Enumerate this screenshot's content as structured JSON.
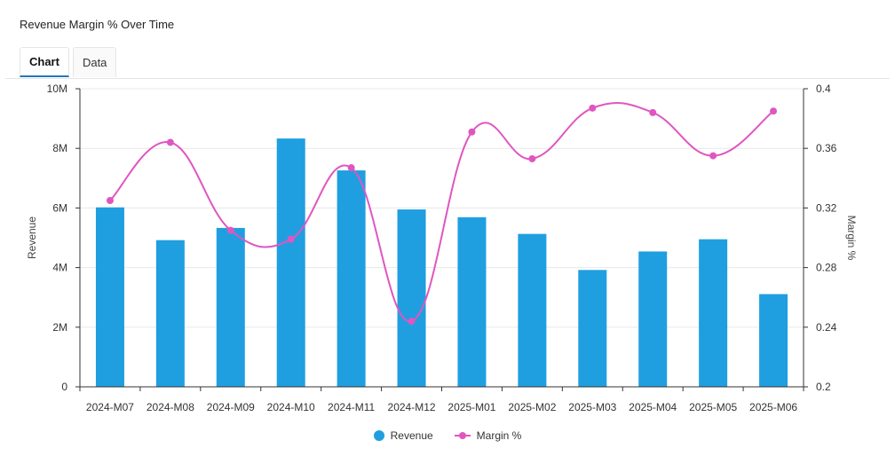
{
  "title": "Revenue Margin % Over Time",
  "tabs": [
    {
      "label": "Chart",
      "active": true
    },
    {
      "label": "Data",
      "active": false
    }
  ],
  "colors": {
    "bar": "#1f9fe0",
    "line": "#e056c0",
    "grid": "#e8e8e8",
    "axis": "#333333"
  },
  "chart_data": {
    "type": "bar",
    "categories": [
      "2024-M07",
      "2024-M08",
      "2024-M09",
      "2024-M10",
      "2024-M11",
      "2024-M12",
      "2025-M01",
      "2025-M02",
      "2025-M03",
      "2025-M04",
      "2025-M05",
      "2025-M06"
    ],
    "series": [
      {
        "name": "Revenue",
        "type": "bar",
        "axis": "left",
        "values": [
          6020000,
          4920000,
          5330000,
          8330000,
          7260000,
          5950000,
          5690000,
          5130000,
          3920000,
          4540000,
          4950000,
          3110000
        ]
      },
      {
        "name": "Margin %",
        "type": "line",
        "axis": "right",
        "smooth": true,
        "values": [
          0.325,
          0.364,
          0.305,
          0.299,
          0.347,
          0.244,
          0.371,
          0.353,
          0.387,
          0.384,
          0.355,
          0.385
        ]
      }
    ],
    "ylabel": "Revenue",
    "y2label": "Margin %",
    "ylim": [
      0,
      10000000
    ],
    "y2lim": [
      0.2,
      0.4
    ],
    "yticks": [
      "0",
      "2M",
      "4M",
      "6M",
      "8M",
      "10M"
    ],
    "y2ticks": [
      "0.2",
      "0.24",
      "0.28",
      "0.32",
      "0.36",
      "0.4"
    ],
    "grid": true,
    "legend": "bottom"
  },
  "legend": [
    {
      "label": "Revenue"
    },
    {
      "label": "Margin %"
    }
  ]
}
